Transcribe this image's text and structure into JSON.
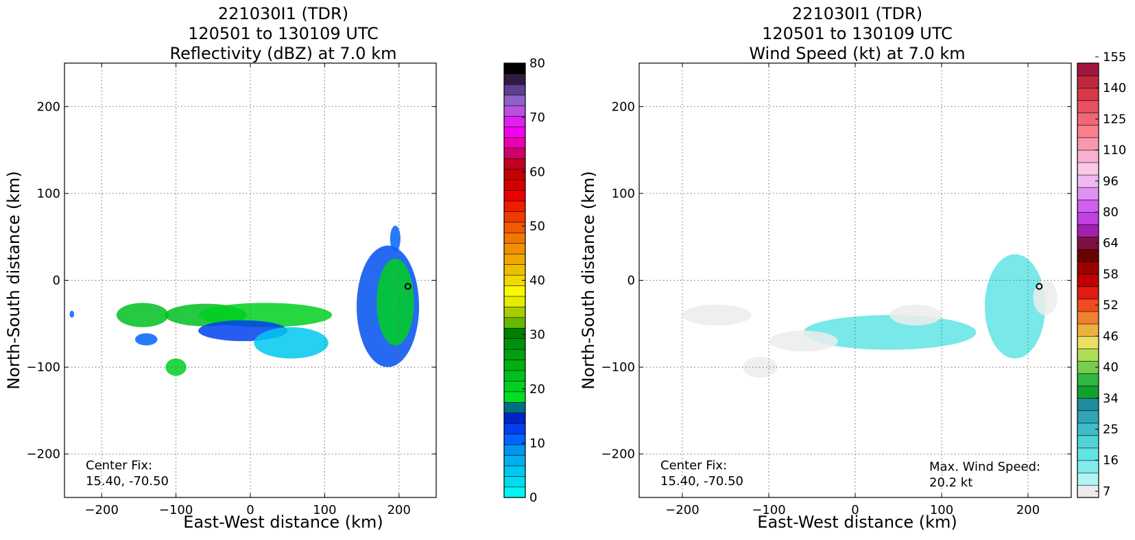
{
  "chart_data": [
    {
      "type": "heatmap",
      "title": [
        "221030I1 (TDR)",
        "120501 to 130109 UTC",
        "Reflectivity (dBZ) at 7.0 km"
      ],
      "xlabel": "East-West distance (km)",
      "ylabel": "North-South distance (km)",
      "xlim": [
        -250,
        250
      ],
      "ylim": [
        -250,
        250
      ],
      "xticks": [
        -200,
        -100,
        0,
        100,
        200
      ],
      "yticks": [
        -200,
        -100,
        0,
        100,
        200
      ],
      "grid": true,
      "annotation": [
        "Center Fix:",
        "15.40, -70.50"
      ],
      "center_marker": [
        212,
        -7
      ],
      "colorbar": {
        "ticks": [
          0,
          10,
          20,
          30,
          40,
          50,
          60,
          70,
          80
        ],
        "colors": [
          "#00f5f5",
          "#00dcee",
          "#00c8ee",
          "#00b0ee",
          "#0095ee",
          "#0064ff",
          "#0040f0",
          "#0024c8",
          "#007080",
          "#00e020",
          "#00d020",
          "#00c020",
          "#00b010",
          "#00a010",
          "#009010",
          "#008000",
          "#66b800",
          "#a8cc00",
          "#e4ec00",
          "#f8f800",
          "#f0d800",
          "#ecc000",
          "#f0a800",
          "#f09000",
          "#f07800",
          "#f05a00",
          "#f03a00",
          "#f01c00",
          "#e80000",
          "#d40000",
          "#c40000",
          "#c00020",
          "#d0006a",
          "#e800b0",
          "#f400f0",
          "#e020f0",
          "#b850e0",
          "#9060c8",
          "#603e90",
          "#301c40",
          "#000000"
        ]
      },
      "blobs": [
        {
          "cx": -145,
          "cy": -40,
          "rx": 35,
          "ry": 14,
          "color": "#00c020"
        },
        {
          "cx": -60,
          "cy": -40,
          "rx": 55,
          "ry": 13,
          "color": "#00c020"
        },
        {
          "cx": 20,
          "cy": -40,
          "rx": 90,
          "ry": 14,
          "color": "#00d020"
        },
        {
          "cx": -10,
          "cy": -58,
          "rx": 60,
          "ry": 12,
          "color": "#0040f0"
        },
        {
          "cx": 55,
          "cy": -72,
          "rx": 50,
          "ry": 18,
          "color": "#00c8ee"
        },
        {
          "cx": 185,
          "cy": -30,
          "rx": 42,
          "ry": 70,
          "color": "#0050f0"
        },
        {
          "cx": 195,
          "cy": -25,
          "rx": 25,
          "ry": 50,
          "color": "#00d020"
        },
        {
          "cx": -100,
          "cy": -100,
          "rx": 14,
          "ry": 10,
          "color": "#00d020"
        },
        {
          "cx": -140,
          "cy": -68,
          "rx": 15,
          "ry": 7,
          "color": "#0064ff"
        },
        {
          "cx": -240,
          "cy": -39,
          "rx": 3,
          "ry": 4,
          "color": "#0064ff"
        },
        {
          "cx": 195,
          "cy": 48,
          "rx": 7,
          "ry": 15,
          "color": "#0064ff"
        }
      ]
    },
    {
      "type": "heatmap",
      "title": [
        "221030I1 (TDR)",
        "120501 to 130109 UTC",
        "Wind Speed (kt) at 7.0 km"
      ],
      "xlabel": "East-West distance (km)",
      "ylabel": "North-South distance (km)",
      "xlim": [
        -250,
        250
      ],
      "ylim": [
        -250,
        250
      ],
      "xticks": [
        -200,
        -100,
        0,
        100,
        200
      ],
      "yticks": [
        -200,
        -100,
        0,
        100,
        200
      ],
      "grid": true,
      "annotation": [
        "Center Fix:",
        "15.40, -70.50"
      ],
      "annotation_right": [
        "Max. Wind Speed:",
        "20.2 kt"
      ],
      "center_marker": [
        213,
        -7
      ],
      "colorbar": {
        "ticks": [
          7,
          16,
          25,
          34,
          40,
          46,
          52,
          58,
          64,
          80,
          96,
          110,
          125,
          140,
          155
        ],
        "colors": [
          "#ececec",
          "#b0f4f4",
          "#80ecec",
          "#60e4e4",
          "#50d4d4",
          "#40bcc8",
          "#30a4b4",
          "#208c9c",
          "#10a030",
          "#30b840",
          "#78cc50",
          "#b0dc58",
          "#e8e060",
          "#f0b040",
          "#f08030",
          "#f04c20",
          "#e01c10",
          "#c00000",
          "#9c0000",
          "#6c0000",
          "#801040",
          "#a020b0",
          "#c040e0",
          "#d060f0",
          "#e090f0",
          "#f0b8f0",
          "#f8c8e8",
          "#f8b0d0",
          "#f898b0",
          "#f88090",
          "#f06878",
          "#e85060",
          "#d83848",
          "#c02840",
          "#a01840"
        ]
      },
      "blobs": [
        {
          "cx": -160,
          "cy": -40,
          "rx": 40,
          "ry": 12,
          "color": "#ececec"
        },
        {
          "cx": 40,
          "cy": -60,
          "rx": 100,
          "ry": 20,
          "color": "#60e4e4"
        },
        {
          "cx": -60,
          "cy": -70,
          "rx": 40,
          "ry": 12,
          "color": "#ececec"
        },
        {
          "cx": 185,
          "cy": -30,
          "rx": 35,
          "ry": 60,
          "color": "#60e4e4"
        },
        {
          "cx": 220,
          "cy": -20,
          "rx": 14,
          "ry": 20,
          "color": "#ececec"
        },
        {
          "cx": -110,
          "cy": -100,
          "rx": 20,
          "ry": 12,
          "color": "#ececec"
        },
        {
          "cx": 70,
          "cy": -40,
          "rx": 30,
          "ry": 12,
          "color": "#ececec"
        }
      ]
    }
  ]
}
